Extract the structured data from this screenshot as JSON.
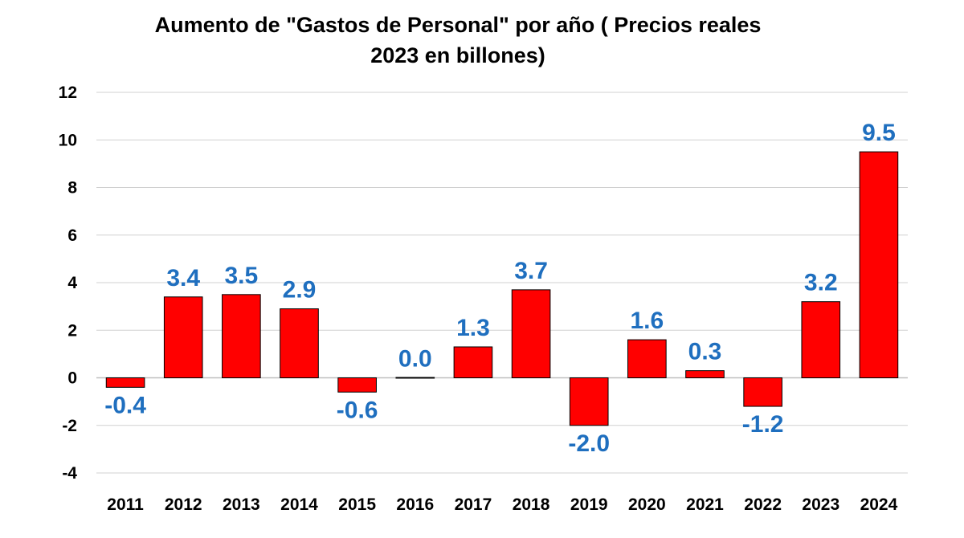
{
  "chart_data": {
    "type": "bar",
    "title_lines": [
      "Aumento de \"Gastos de Personal\" por año ( Precios reales",
      "2023 en billones)"
    ],
    "categories": [
      "2011",
      "2012",
      "2013",
      "2014",
      "2015",
      "2016",
      "2017",
      "2018",
      "2019",
      "2020",
      "2021",
      "2022",
      "2023",
      "2024"
    ],
    "values": [
      -0.4,
      3.4,
      3.5,
      2.9,
      -0.6,
      0.0,
      1.3,
      3.7,
      -2.0,
      1.6,
      0.3,
      -1.2,
      3.2,
      9.5
    ],
    "data_labels": [
      "-0.4",
      "3.4",
      "3.5",
      "2.9",
      "-0.6",
      "0.0",
      "1.3",
      "3.7",
      "-2.0",
      "1.6",
      "0.3",
      "-1.2",
      "3.2",
      "9.5"
    ],
    "y_ticks": [
      "12",
      "10",
      "8",
      "6",
      "4",
      "2",
      "0",
      "-2",
      "-4"
    ],
    "ylim": [
      -4,
      12
    ],
    "grid": true,
    "legend": "none",
    "xlabel": "",
    "ylabel": ""
  },
  "colors": {
    "bar_fill": "#ff0000",
    "bar_stroke": "#000000",
    "data_label": "#1f6fbf",
    "gridline": "#d0d0d0",
    "zero_line": "#bfbfbf"
  }
}
